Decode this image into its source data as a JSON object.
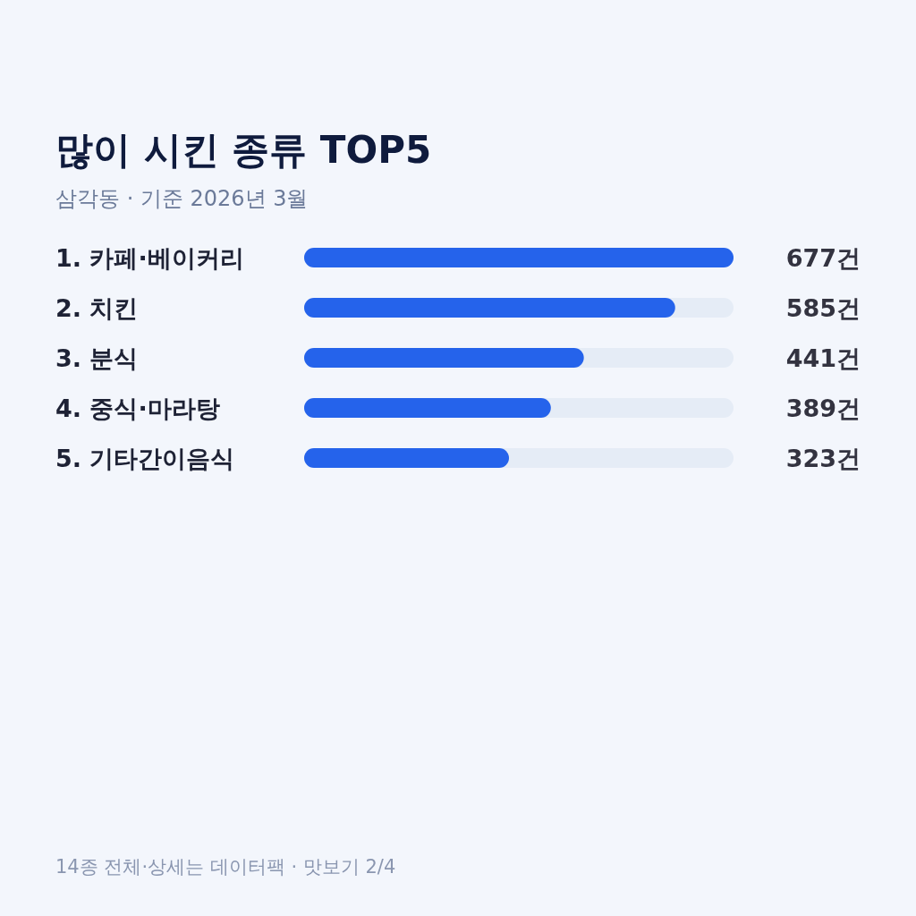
{
  "chart_data": {
    "type": "bar",
    "orientation": "horizontal",
    "title": "많이 시킨 종류 TOP5",
    "subtitle": "삼각동 · 기준 2026년 3월",
    "categories": [
      "1. 카페·베이커리",
      "2. 치킨",
      "3. 분식",
      "4. 중식·마라탕",
      "5. 기타간이음식"
    ],
    "values": [
      677,
      585,
      441,
      389,
      323
    ],
    "value_labels": [
      "677건",
      "585건",
      "441건",
      "389건",
      "323건"
    ],
    "color": "#2563eb",
    "xlim": [
      0,
      677
    ],
    "annotations": [
      "14종 전체·상세는 데이터팩 · 맛보기 2/4"
    ]
  }
}
